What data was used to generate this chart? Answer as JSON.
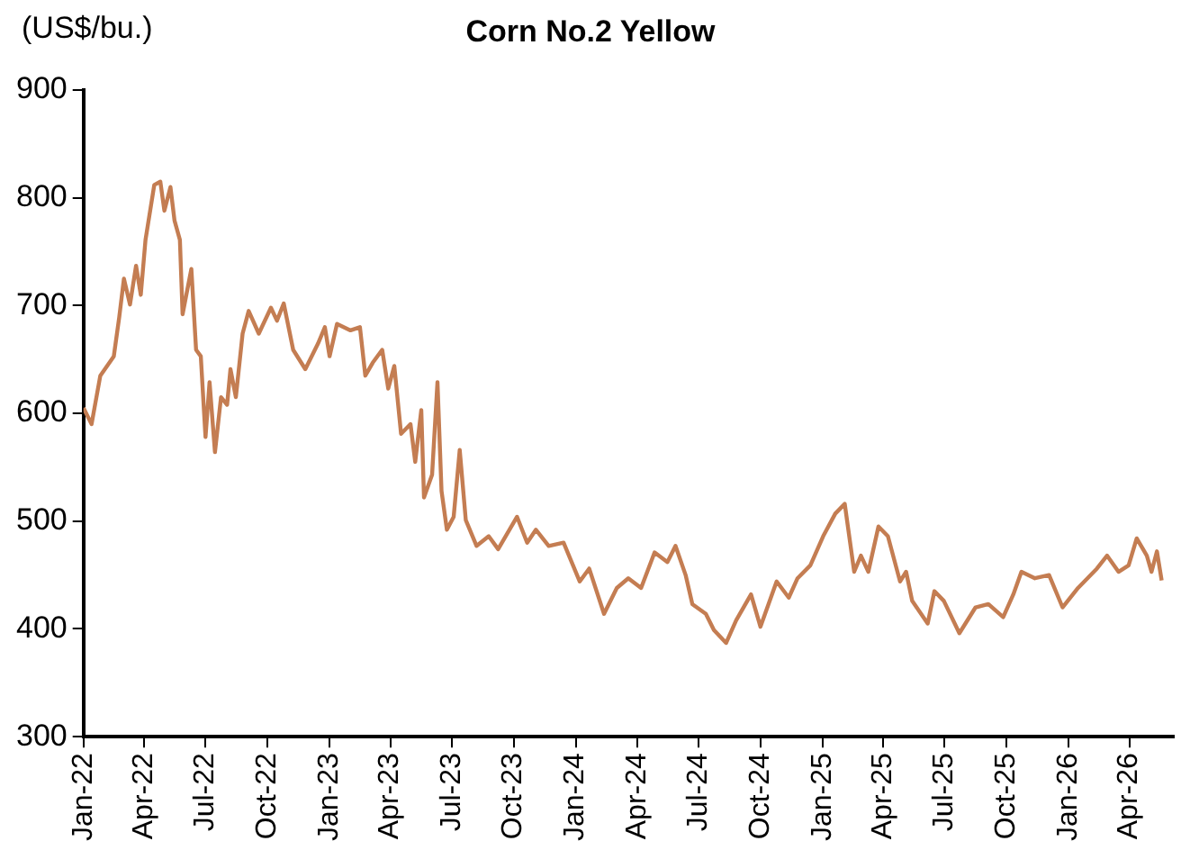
{
  "chart_data": {
    "type": "line",
    "title": "Corn No.2 Yellow",
    "ylabel": "(US$/bu.)",
    "x": [
      "2022-01-01",
      "2022-01-13",
      "2022-01-26",
      "2022-02-15",
      "2022-02-23",
      "2022-03-02",
      "2022-03-11",
      "2022-03-20",
      "2022-03-27",
      "2022-04-03",
      "2022-04-16",
      "2022-04-25",
      "2022-05-01",
      "2022-05-10",
      "2022-05-16",
      "2022-05-24",
      "2022-05-28",
      "2022-06-10",
      "2022-06-17",
      "2022-06-24",
      "2022-07-01",
      "2022-07-07",
      "2022-07-15",
      "2022-07-24",
      "2022-08-02",
      "2022-08-07",
      "2022-08-15",
      "2022-08-25",
      "2022-09-03",
      "2022-09-18",
      "2022-10-06",
      "2022-10-15",
      "2022-10-25",
      "2022-11-08",
      "2022-11-26",
      "2022-12-15",
      "2022-12-25",
      "2023-01-01",
      "2023-01-12",
      "2023-02-01",
      "2023-02-15",
      "2023-02-23",
      "2023-03-06",
      "2023-03-20",
      "2023-03-29",
      "2023-04-07",
      "2023-04-17",
      "2023-05-01",
      "2023-05-08",
      "2023-05-17",
      "2023-05-21",
      "2023-06-02",
      "2023-06-10",
      "2023-06-16",
      "2023-06-24",
      "2023-07-04",
      "2023-07-13",
      "2023-07-22",
      "2023-08-07",
      "2023-08-25",
      "2023-09-08",
      "2023-10-06",
      "2023-10-21",
      "2023-11-03",
      "2023-11-22",
      "2023-12-14",
      "2024-01-07",
      "2024-01-21",
      "2024-02-12",
      "2024-03-02",
      "2024-03-19",
      "2024-04-07",
      "2024-04-27",
      "2024-05-16",
      "2024-05-28",
      "2024-06-12",
      "2024-06-22",
      "2024-07-12",
      "2024-07-24",
      "2024-08-11",
      "2024-08-26",
      "2024-09-17",
      "2024-10-01",
      "2024-10-25",
      "2024-11-12",
      "2024-11-25",
      "2024-12-14",
      "2025-01-02",
      "2025-01-20",
      "2025-02-03",
      "2025-02-17",
      "2025-02-27",
      "2025-03-10",
      "2025-03-25",
      "2025-04-08",
      "2025-04-26",
      "2025-05-05",
      "2025-05-14",
      "2025-06-06",
      "2025-06-16",
      "2025-06-30",
      "2025-07-23",
      "2025-08-16",
      "2025-09-04",
      "2025-09-26",
      "2025-10-11",
      "2025-10-23",
      "2025-11-12",
      "2025-12-03",
      "2025-12-23",
      "2026-01-15",
      "2026-02-12",
      "2026-02-27",
      "2026-03-16",
      "2026-03-31",
      "2026-04-12",
      "2026-04-27",
      "2026-05-04",
      "2026-05-12",
      "2026-05-19"
    ],
    "series": [
      {
        "color": "#c47d52",
        "values": [
          605,
          590,
          635,
          653,
          689,
          725,
          701,
          737,
          710,
          761,
          812,
          815,
          788,
          810,
          779,
          761,
          692,
          734,
          659,
          653,
          578,
          629,
          564,
          615,
          608,
          641,
          615,
          674,
          695,
          674,
          698,
          686,
          702,
          659,
          641,
          665,
          680,
          653,
          683,
          677,
          680,
          635,
          647,
          659,
          623,
          644,
          581,
          590,
          555,
          603,
          522,
          543,
          629,
          528,
          492,
          504,
          566,
          501,
          477,
          486,
          474,
          504,
          480,
          492,
          477,
          480,
          444,
          456,
          414,
          438,
          447,
          438,
          471,
          462,
          477,
          450,
          423,
          414,
          399,
          387,
          408,
          432,
          402,
          444,
          429,
          447,
          459,
          486,
          507,
          516,
          453,
          468,
          453,
          495,
          486,
          444,
          453,
          426,
          405,
          435,
          426,
          396,
          420,
          423,
          411,
          432,
          453,
          447,
          450,
          420,
          438,
          456,
          468,
          453,
          459,
          484,
          468,
          453,
          472,
          445
        ]
      }
    ],
    "xlim": [
      "2022-01-01",
      "2026-06-06"
    ],
    "xticks": [
      {
        "value": "2022-01-01",
        "label": "Jan-22"
      },
      {
        "value": "2022-04-01",
        "label": "Apr-22"
      },
      {
        "value": "2022-07-01",
        "label": "Jul-22"
      },
      {
        "value": "2022-10-01",
        "label": "Oct-22"
      },
      {
        "value": "2023-01-01",
        "label": "Jan-23"
      },
      {
        "value": "2023-04-01",
        "label": "Apr-23"
      },
      {
        "value": "2023-07-01",
        "label": "Jul-23"
      },
      {
        "value": "2023-10-01",
        "label": "Oct-23"
      },
      {
        "value": "2024-01-01",
        "label": "Jan-24"
      },
      {
        "value": "2024-04-01",
        "label": "Apr-24"
      },
      {
        "value": "2024-07-01",
        "label": "Jul-24"
      },
      {
        "value": "2024-10-01",
        "label": "Oct-24"
      },
      {
        "value": "2025-01-01",
        "label": "Jan-25"
      },
      {
        "value": "2025-04-01",
        "label": "Apr-25"
      },
      {
        "value": "2025-07-01",
        "label": "Jul-25"
      },
      {
        "value": "2025-10-01",
        "label": "Oct-25"
      },
      {
        "value": "2026-01-01",
        "label": "Jan-26"
      },
      {
        "value": "2026-04-01",
        "label": "Apr-26"
      }
    ],
    "ylim": [
      300,
      900
    ],
    "yticks": [
      300,
      400,
      500,
      600,
      700,
      800,
      900
    ],
    "grid": false,
    "legend": false,
    "marker": "none",
    "line_style": "solid"
  }
}
